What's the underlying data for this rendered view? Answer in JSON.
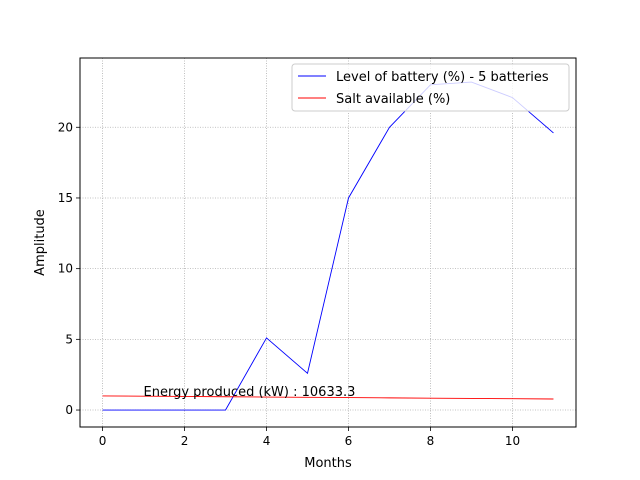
{
  "chart_data": {
    "type": "line",
    "title": "",
    "xlabel": "Months",
    "ylabel": "Amplitude",
    "xlim": [
      -0.55,
      11.55
    ],
    "ylim": [
      -1.2,
      24.9
    ],
    "xticks": [
      0,
      2,
      4,
      6,
      8,
      10
    ],
    "yticks": [
      0,
      5,
      10,
      15,
      20
    ],
    "grid": true,
    "legend_position": "top-right",
    "annotation": {
      "text": "Energy produced (kW) : 10633.3",
      "x": 1.0,
      "y": 1.0
    },
    "series": [
      {
        "name": "Level of battery (%) - 5 batteries",
        "color": "#0000ff",
        "x": [
          0,
          1,
          2,
          3,
          4,
          5,
          6,
          7,
          8,
          9,
          10,
          11
        ],
        "y": [
          0,
          0,
          0,
          0,
          5.1,
          2.6,
          15.0,
          20.0,
          23.0,
          23.2,
          22.1,
          19.6
        ]
      },
      {
        "name": "Salt available (%)",
        "color": "#ff0000",
        "x": [
          0,
          1,
          2,
          3,
          4,
          5,
          6,
          7,
          8,
          9,
          10,
          11
        ],
        "y": [
          1.0,
          0.98,
          0.96,
          0.94,
          0.92,
          0.9,
          0.88,
          0.86,
          0.84,
          0.82,
          0.8,
          0.78
        ]
      }
    ]
  }
}
